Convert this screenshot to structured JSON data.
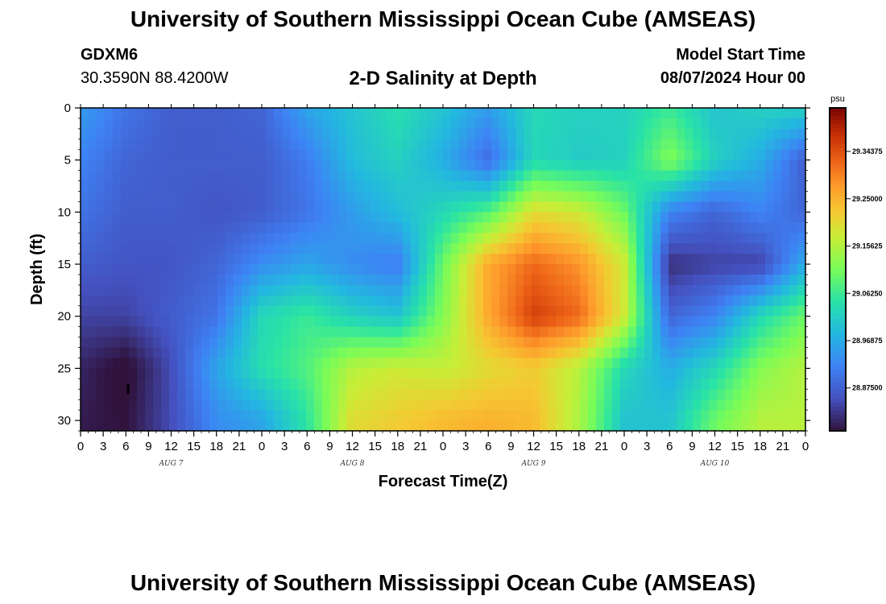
{
  "header": {
    "title": "University of Southern Mississippi Ocean Cube (AMSEAS)",
    "station_id": "GDXM6",
    "station_coords": "30.3590N  88.4200W",
    "subtitle": "2-D Salinity at Depth",
    "model_start_label": "Model Start Time",
    "model_start_value": "08/07/2024 Hour 00"
  },
  "footer": {
    "title": "University of Southern Mississippi Ocean Cube (AMSEAS)"
  },
  "chart_data": {
    "type": "heatmap",
    "xlabel": "Forecast Time(Z)",
    "ylabel": "Depth (ft)",
    "x_unit": "forecast hour",
    "xlim": [
      0,
      96
    ],
    "ylim": [
      31,
      0
    ],
    "x_ticks": [
      0,
      3,
      6,
      9,
      12,
      15,
      18,
      21,
      24,
      27,
      30,
      33,
      36,
      39,
      42,
      45,
      48,
      51,
      54,
      57,
      60,
      63,
      66,
      69,
      72,
      75,
      78,
      81,
      84,
      87,
      90,
      93,
      96
    ],
    "x_tick_labels": [
      "0",
      "3",
      "6",
      "9",
      "12",
      "15",
      "18",
      "21",
      "0",
      "3",
      "6",
      "9",
      "12",
      "15",
      "18",
      "21",
      "0",
      "3",
      "6",
      "9",
      "12",
      "15",
      "18",
      "21",
      "0",
      "3",
      "6",
      "9",
      "12",
      "15",
      "18",
      "21",
      "0"
    ],
    "date_labels": [
      {
        "hour": 12,
        "text": "AUG 7"
      },
      {
        "hour": 36,
        "text": "AUG 8"
      },
      {
        "hour": 60,
        "text": "AUG 9"
      },
      {
        "hour": 84,
        "text": "AUG 10"
      }
    ],
    "y_ticks": [
      0,
      5,
      10,
      15,
      20,
      25,
      30
    ],
    "colorbar": {
      "unit": "psu",
      "min": 28.79,
      "max": 29.43,
      "tick_values": [
        29.34375,
        29.25,
        29.15625,
        29.0625,
        28.96875,
        28.875
      ],
      "tick_labels": [
        "29.34375",
        "29.25000",
        "29.15625",
        "29.06250",
        "28.96875",
        "28.87500"
      ]
    },
    "depths": [
      0,
      5,
      10,
      15,
      20,
      25,
      30
    ],
    "times": [
      0,
      6,
      12,
      18,
      24,
      30,
      36,
      42,
      48,
      54,
      60,
      66,
      72,
      78,
      84,
      90,
      96
    ],
    "salinity": [
      [
        28.95,
        28.9,
        28.87,
        28.87,
        28.88,
        28.96,
        29.0,
        29.04,
        29.0,
        28.95,
        29.03,
        29.02,
        29.02,
        29.06,
        29.0,
        29.02,
        29.02
      ],
      [
        28.92,
        28.88,
        28.87,
        28.87,
        28.87,
        28.91,
        28.99,
        29.02,
        28.97,
        28.89,
        29.03,
        29.01,
        29.02,
        29.12,
        29.02,
        28.97,
        28.87
      ],
      [
        28.9,
        28.87,
        28.87,
        28.86,
        28.87,
        28.9,
        28.95,
        28.99,
        29.03,
        29.08,
        29.2,
        29.18,
        29.1,
        28.92,
        28.88,
        28.92,
        28.88
      ],
      [
        28.87,
        28.86,
        28.86,
        28.88,
        28.93,
        28.96,
        28.93,
        28.91,
        29.1,
        29.26,
        29.32,
        29.28,
        29.18,
        28.82,
        28.84,
        28.84,
        28.97
      ],
      [
        28.84,
        28.84,
        28.87,
        28.9,
        29.03,
        29.06,
        29.02,
        29.0,
        29.12,
        29.26,
        29.36,
        29.32,
        29.18,
        28.88,
        28.92,
        29.03,
        29.1
      ],
      [
        28.81,
        28.78,
        28.85,
        28.96,
        29.04,
        29.08,
        29.16,
        29.18,
        29.17,
        29.2,
        29.22,
        29.16,
        29.03,
        28.97,
        29.03,
        29.12,
        29.16
      ],
      [
        28.8,
        28.79,
        28.85,
        28.93,
        28.96,
        29.05,
        29.2,
        29.22,
        29.24,
        29.25,
        29.24,
        29.15,
        29.0,
        29.0,
        29.1,
        29.16,
        29.16
      ]
    ],
    "marker": {
      "hour": 6.3,
      "depth": 27
    }
  }
}
